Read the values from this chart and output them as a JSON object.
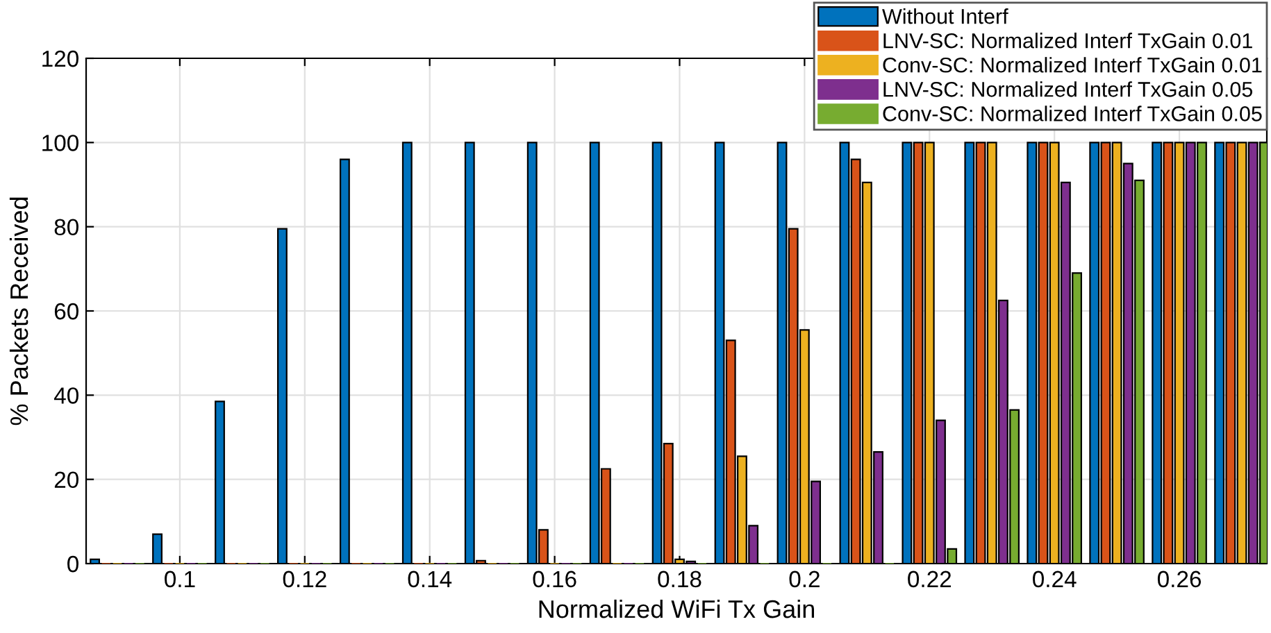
{
  "chart_data": {
    "type": "bar",
    "xlabel": "Normalized WiFi Tx Gain",
    "ylabel": "% Packets Received",
    "x": [
      0.09,
      0.1,
      0.11,
      0.12,
      0.13,
      0.14,
      0.15,
      0.16,
      0.17,
      0.18,
      0.19,
      0.2,
      0.21,
      0.22,
      0.23,
      0.24,
      0.25,
      0.26,
      0.27
    ],
    "series": [
      {
        "name": "Without Interf",
        "color": "#0072bd",
        "values": [
          1,
          7,
          38.5,
          79.5,
          96,
          100,
          100,
          100,
          100,
          100,
          100,
          100,
          100,
          100,
          100,
          100,
          100,
          100,
          100
        ]
      },
      {
        "name": "LNV-SC: Normalized Interf TxGain 0.01",
        "color": "#d95319",
        "values": [
          0,
          0,
          0,
          0,
          0,
          0,
          0.7,
          8,
          22.5,
          28.5,
          53,
          79.5,
          96,
          100,
          100,
          100,
          100,
          100,
          100
        ]
      },
      {
        "name": "Conv-SC: Normalized Interf TxGain 0.01",
        "color": "#edb120",
        "values": [
          0,
          0,
          0,
          0,
          0,
          0,
          0,
          0,
          0,
          1,
          25.5,
          55.5,
          90.5,
          100,
          100,
          100,
          100,
          100,
          100
        ]
      },
      {
        "name": "LNV-SC: Normalized Interf TxGain 0.05",
        "color": "#7e2f8e",
        "values": [
          0,
          0,
          0,
          0,
          0,
          0,
          0,
          0,
          0,
          0.5,
          9,
          19.5,
          26.5,
          34,
          62.5,
          90.5,
          95,
          100,
          100
        ]
      },
      {
        "name": "Conv-SC: Normalized Interf TxGain 0.05",
        "color": "#77ac30",
        "values": [
          0,
          0,
          0,
          0,
          0,
          0,
          0,
          0,
          0,
          0,
          0,
          0,
          0,
          3.5,
          36.5,
          69,
          91,
          100,
          100
        ]
      }
    ],
    "xlim": [
      0.085,
      0.274
    ],
    "xticks": [
      {
        "value": 0.1,
        "label": "0.1"
      },
      {
        "value": 0.12,
        "label": "0.12"
      },
      {
        "value": 0.14,
        "label": "0.14"
      },
      {
        "value": 0.16,
        "label": "0.16"
      },
      {
        "value": 0.18,
        "label": "0.18"
      },
      {
        "value": 0.2,
        "label": "0.2"
      },
      {
        "value": 0.22,
        "label": "0.22"
      },
      {
        "value": 0.24,
        "label": "0.24"
      },
      {
        "value": 0.26,
        "label": "0.26"
      }
    ],
    "ylim": [
      0,
      120
    ],
    "yticks": [
      0,
      20,
      40,
      60,
      80,
      100,
      120
    ],
    "grid": true,
    "legend": "top right"
  }
}
